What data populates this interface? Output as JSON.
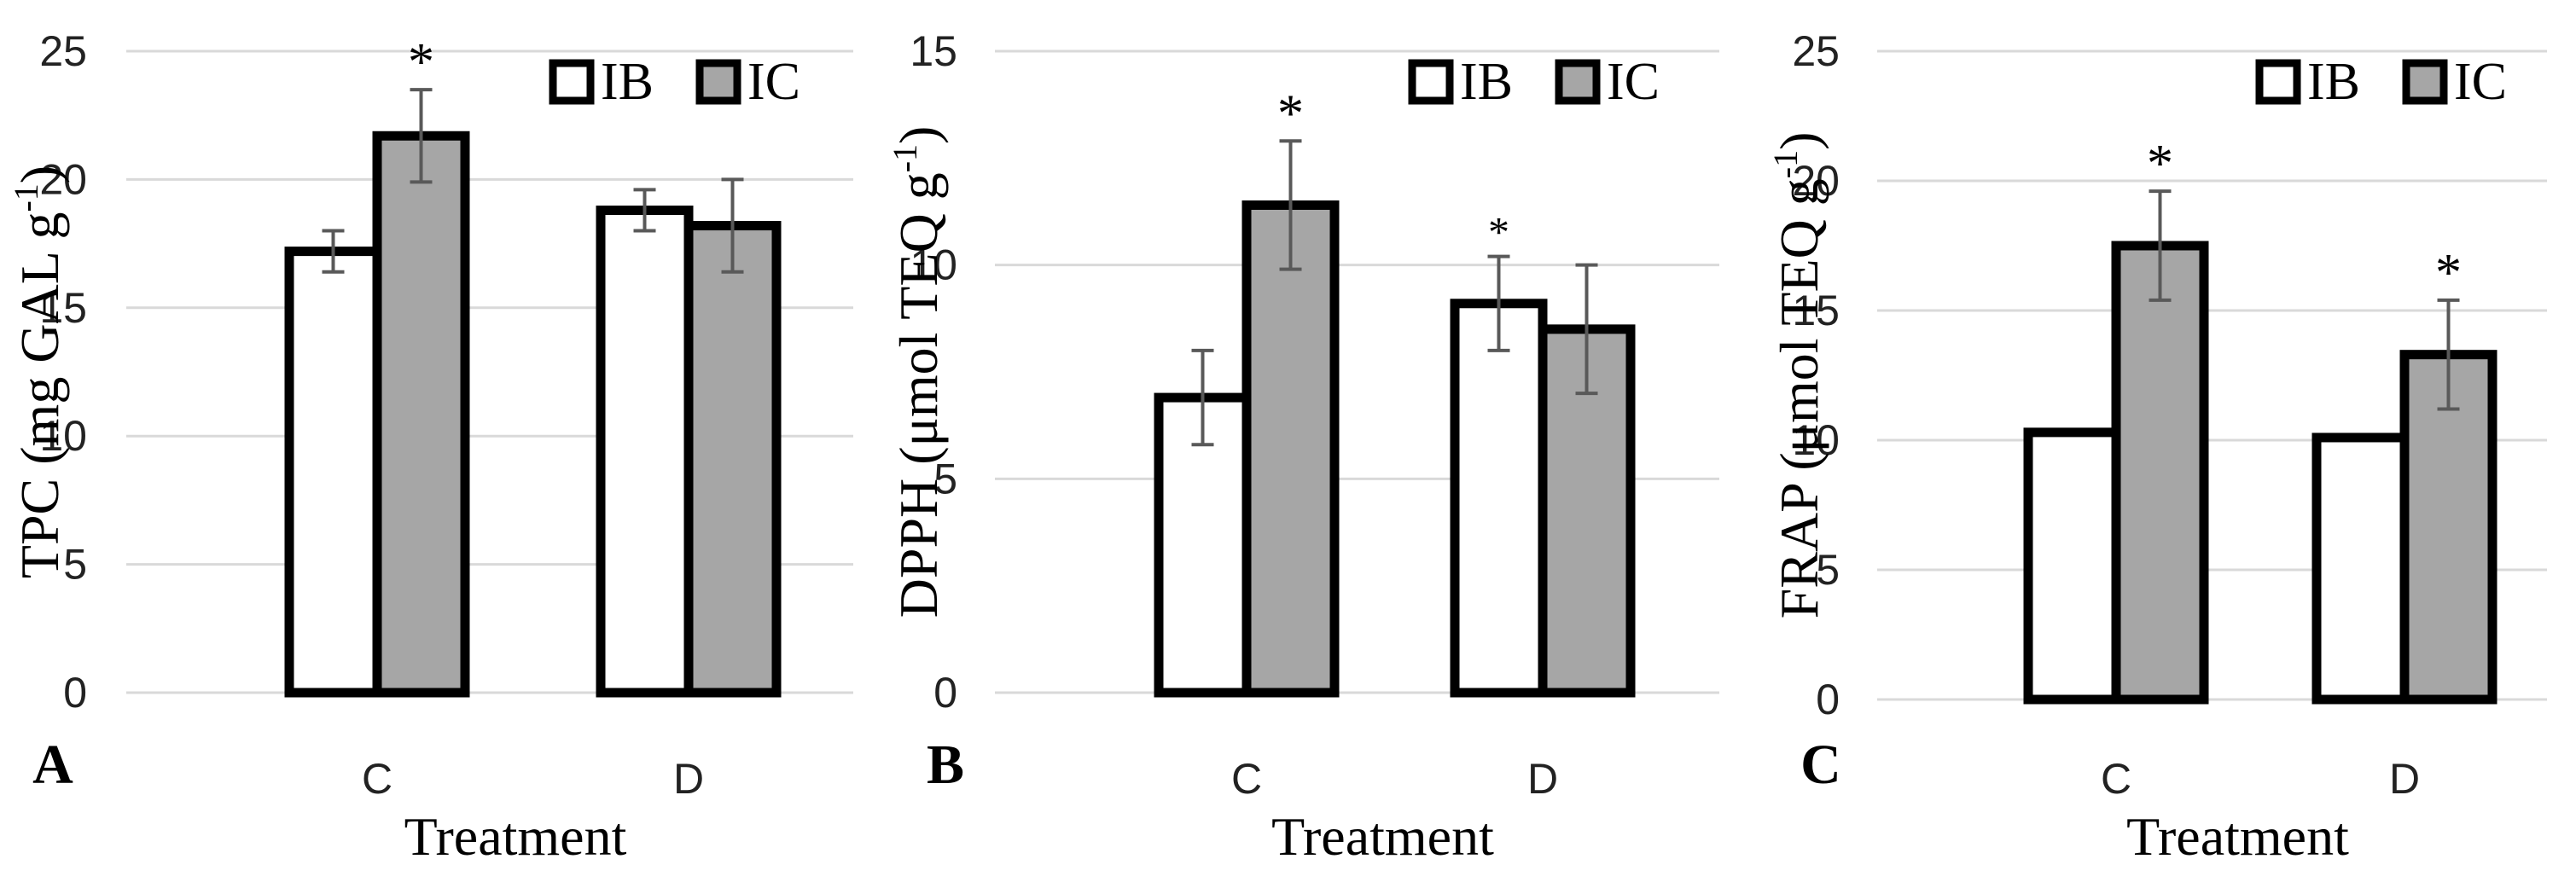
{
  "figure": {
    "treatment_label": "Treatment",
    "bar_colors": {
      "IB": "#ffffff",
      "IC": "#a6a6a6"
    },
    "outline_color": "#000000",
    "grid_color": "#d9d9d9",
    "error_color": "#595959"
  },
  "chart_data": [
    {
      "type": "bar",
      "panel": "A",
      "ylabel": "TPC (mg GAL g",
      "ylabel_sup": "-1",
      "ylabel_end": ")",
      "xlabel": "Treatment",
      "categories": [
        "C",
        "D"
      ],
      "ylim": [
        0,
        25
      ],
      "yticks": [
        0,
        5,
        10,
        15,
        20,
        25
      ],
      "grid": true,
      "legend": [
        "IB",
        "IC"
      ],
      "legend_position": "top-right",
      "series": [
        {
          "name": "IB",
          "values": [
            17.2,
            18.8
          ],
          "errors": [
            0.8,
            0.8
          ]
        },
        {
          "name": "IC",
          "values": [
            21.7,
            18.2
          ],
          "errors": [
            1.8,
            1.8
          ]
        }
      ],
      "annotations": [
        {
          "category": "C",
          "series": "IC",
          "text": "*"
        }
      ]
    },
    {
      "type": "bar",
      "panel": "B",
      "ylabel": "DPPH (μmol TEQ g",
      "ylabel_sup": "-1",
      "ylabel_end": ")",
      "xlabel": "Treatment",
      "categories": [
        "C",
        "D"
      ],
      "ylim": [
        0,
        15
      ],
      "yticks": [
        0,
        5,
        10,
        15
      ],
      "grid": true,
      "legend": [
        "IB",
        "IC"
      ],
      "legend_position": "top-right",
      "series": [
        {
          "name": "IB",
          "values": [
            6.9,
            9.1
          ],
          "errors": [
            1.1,
            1.1
          ]
        },
        {
          "name": "IC",
          "values": [
            11.4,
            8.5
          ],
          "errors": [
            1.5,
            1.5
          ]
        }
      ],
      "annotations": [
        {
          "category": "C",
          "series": "IC",
          "text": "*"
        },
        {
          "category": "D",
          "series": "IB",
          "text": "*"
        }
      ]
    },
    {
      "type": "bar",
      "panel": "C",
      "ylabel": "FRAP (μmol TEQ g",
      "ylabel_sup": "-1",
      "ylabel_end": ")",
      "xlabel": "Treatment",
      "categories": [
        "C",
        "D"
      ],
      "ylim": [
        0,
        25
      ],
      "yticks": [
        0,
        5,
        10,
        15,
        20,
        25
      ],
      "grid": true,
      "legend": [
        "IB",
        "IC"
      ],
      "legend_position": "top-right",
      "series": [
        {
          "name": "IB",
          "values": [
            10.3,
            10.1
          ],
          "errors": [
            0.1,
            0.1
          ]
        },
        {
          "name": "IC",
          "values": [
            17.5,
            13.3
          ],
          "errors": [
            2.1,
            2.1
          ]
        }
      ],
      "annotations": [
        {
          "category": "C",
          "series": "IC",
          "text": "*"
        },
        {
          "category": "D",
          "series": "IC",
          "text": "*"
        }
      ]
    }
  ]
}
